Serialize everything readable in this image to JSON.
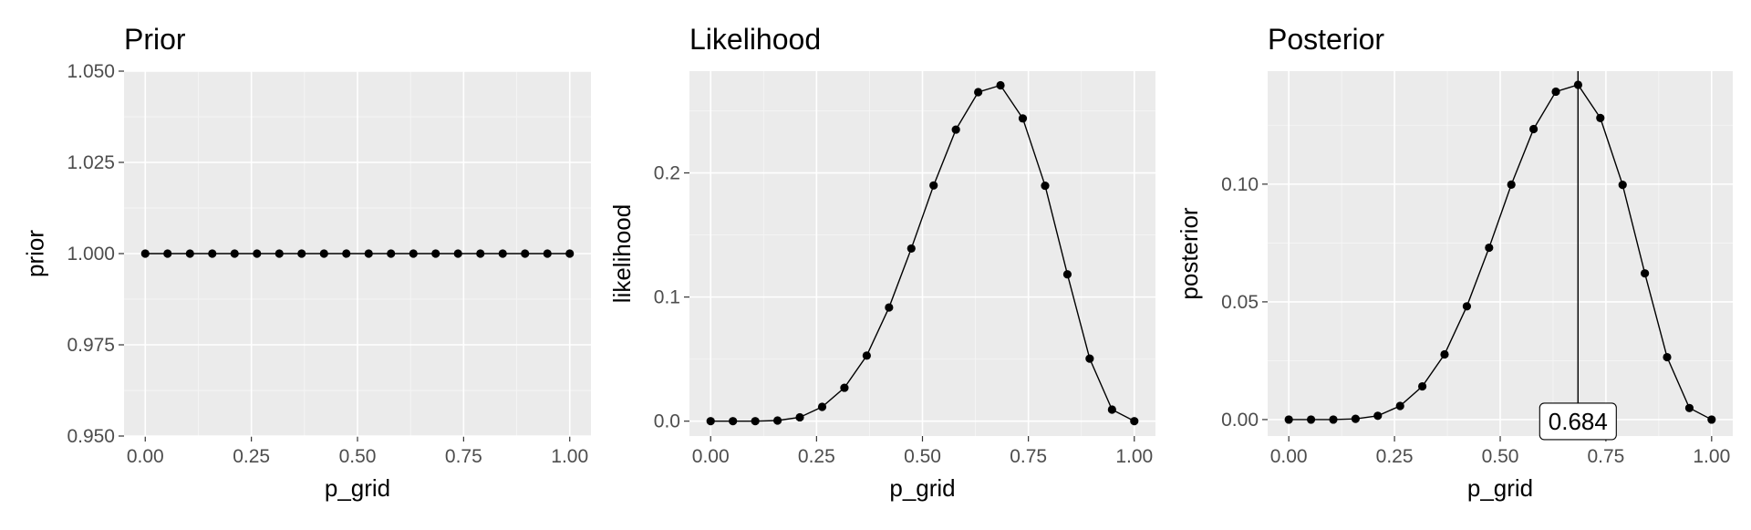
{
  "chart_data": [
    {
      "type": "line",
      "title": "Prior",
      "xlabel": "p_grid",
      "ylabel": "prior",
      "xlim": [
        -0.05,
        1.05
      ],
      "ylim": [
        0.95,
        1.05
      ],
      "grid": true,
      "x_ticks": [
        "0.00",
        "0.25",
        "0.50",
        "0.75",
        "1.00"
      ],
      "y_ticks": [
        "0.950",
        "0.975",
        "1.000",
        "1.025",
        "1.050"
      ],
      "x": [
        0.0,
        0.0526,
        0.1053,
        0.1579,
        0.2105,
        0.2632,
        0.3158,
        0.3684,
        0.4211,
        0.4737,
        0.5263,
        0.5789,
        0.6316,
        0.6842,
        0.7368,
        0.7895,
        0.8421,
        0.8947,
        0.9474,
        1.0
      ],
      "y": [
        1,
        1,
        1,
        1,
        1,
        1,
        1,
        1,
        1,
        1,
        1,
        1,
        1,
        1,
        1,
        1,
        1,
        1,
        1,
        1
      ]
    },
    {
      "type": "line",
      "title": "Likelihood",
      "xlabel": "p_grid",
      "ylabel": "likelihood",
      "xlim": [
        -0.05,
        1.05
      ],
      "ylim": [
        -0.012,
        0.282
      ],
      "grid": true,
      "x_ticks": [
        "0.00",
        "0.25",
        "0.50",
        "0.75",
        "1.00"
      ],
      "y_ticks": [
        "0.0",
        "0.1",
        "0.2"
      ],
      "x": [
        0.0,
        0.0526,
        0.1053,
        0.1579,
        0.2105,
        0.2632,
        0.3158,
        0.3684,
        0.4211,
        0.4737,
        0.5263,
        0.5789,
        0.6316,
        0.6842,
        0.7368,
        0.7895,
        0.8421,
        0.8947,
        0.9474,
        1.0
      ],
      "y": [
        0.0,
        0.0,
        0.0,
        0.0005,
        0.0031,
        0.0115,
        0.0269,
        0.0528,
        0.0916,
        0.1391,
        0.1899,
        0.2349,
        0.2651,
        0.2706,
        0.2439,
        0.1897,
        0.1183,
        0.0504,
        0.0093,
        0.0
      ]
    },
    {
      "type": "line",
      "title": "Posterior",
      "xlabel": "p_grid",
      "ylabel": "posterior",
      "xlim": [
        -0.05,
        1.05
      ],
      "ylim": [
        -0.007,
        0.148
      ],
      "grid": true,
      "x_ticks": [
        "0.00",
        "0.25",
        "0.50",
        "0.75",
        "1.00"
      ],
      "y_ticks": [
        "0.00",
        "0.05",
        "0.10"
      ],
      "x": [
        0.0,
        0.0526,
        0.1053,
        0.1579,
        0.2105,
        0.2632,
        0.3158,
        0.3684,
        0.4211,
        0.4737,
        0.5263,
        0.5789,
        0.6316,
        0.6842,
        0.7368,
        0.7895,
        0.8421,
        0.8947,
        0.9474,
        1.0
      ],
      "y": [
        0.0,
        0.0,
        0.0,
        0.0003,
        0.0016,
        0.0058,
        0.0141,
        0.0277,
        0.0481,
        0.073,
        0.0998,
        0.1234,
        0.1393,
        0.1422,
        0.1281,
        0.0997,
        0.0621,
        0.0265,
        0.0049,
        0.0
      ],
      "vline_x": 0.684,
      "annotation": "0.684"
    }
  ]
}
